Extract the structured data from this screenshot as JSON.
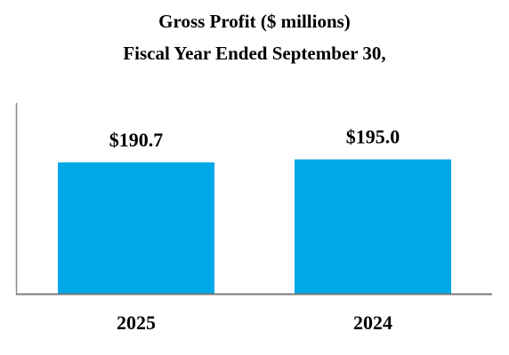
{
  "chart_data": {
    "type": "bar",
    "title": "Gross Profit ($ millions)",
    "subtitle": "Fiscal Year Ended September 30,",
    "categories": [
      "2025",
      "2024"
    ],
    "values": [
      190.7,
      195.0
    ],
    "value_labels": [
      "$190.7",
      "$195.0"
    ],
    "xlabel": "",
    "ylabel": "",
    "grid": false,
    "bar_color": "#00A8E8"
  }
}
